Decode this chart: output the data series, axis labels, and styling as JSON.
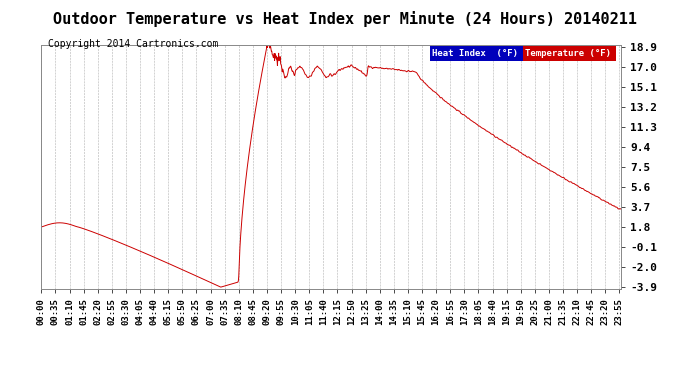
{
  "title": "Outdoor Temperature vs Heat Index per Minute (24 Hours) 20140211",
  "copyright": "Copyright 2014 Cartronics.com",
  "yticks": [
    -3.9,
    -2.0,
    -0.1,
    1.8,
    3.7,
    5.6,
    7.5,
    9.4,
    11.3,
    13.2,
    15.1,
    17.0,
    18.9
  ],
  "ytick_labels": [
    "-3.9",
    "-2.0",
    "-0.1",
    "1.8",
    "3.7",
    "5.6",
    "7.5",
    "9.4",
    "11.3",
    "13.2",
    "15.1",
    "17.0",
    "18.9"
  ],
  "line_color": "#cc0000",
  "background_color": "#ffffff",
  "grid_color": "#b0b0b0",
  "legend_heat_index_bg": "#0000bb",
  "legend_temp_bg": "#cc0000",
  "legend_text_color": "#ffffff",
  "title_fontsize": 11,
  "copyright_fontsize": 7,
  "tick_fontsize": 6.5,
  "ytick_fontsize": 8,
  "ylim": [
    -3.9,
    18.9
  ],
  "n_minutes": 1440,
  "xtick_interval": 30,
  "x_labels": [
    "00:00",
    "00:35",
    "01:10",
    "01:45",
    "02:20",
    "02:55",
    "03:30",
    "04:05",
    "04:40",
    "05:15",
    "05:50",
    "06:25",
    "07:00",
    "07:35",
    "08:10",
    "08:45",
    "09:20",
    "09:55",
    "10:30",
    "11:05",
    "11:40",
    "12:15",
    "12:50",
    "13:25",
    "14:00",
    "14:35",
    "15:10",
    "15:45",
    "16:20",
    "16:55",
    "17:30",
    "18:05",
    "18:40",
    "19:15",
    "19:50",
    "20:25",
    "21:00",
    "21:35",
    "22:10",
    "22:45",
    "23:20",
    "23:55"
  ]
}
